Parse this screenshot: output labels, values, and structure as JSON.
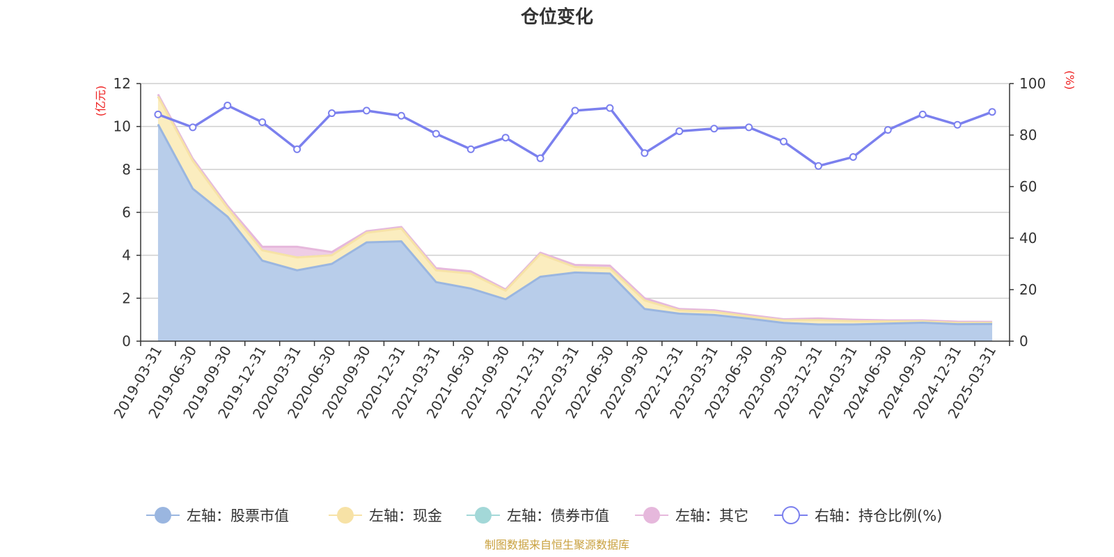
{
  "chart_data": {
    "type": "area",
    "title": "仓位变化",
    "source_note": "制图数据来自恒生聚源数据库",
    "left_axis": {
      "unit": "(亿元)",
      "ylim": [
        0,
        12
      ],
      "ticks": [
        0,
        2,
        4,
        6,
        8,
        10,
        12
      ]
    },
    "right_axis": {
      "unit": "(%)",
      "ylim": [
        0,
        100
      ],
      "ticks": [
        0,
        20,
        40,
        60,
        80,
        100
      ]
    },
    "axis_label_color": "#ee1c1c",
    "x_tick_labels": [
      "2019-03-31",
      "2019-06-30",
      "2019-09-30",
      "2019-12-31",
      "2020-03-31",
      "2020-06-30",
      "2020-09-30",
      "2020-12-31",
      "2021-03-31",
      "2021-06-30",
      "2021-09-30",
      "2021-12-31",
      "2022-03-31",
      "2022-06-30",
      "2022-09-30",
      "2022-12-31",
      "2023-03-31",
      "2023-06-30",
      "2023-09-30",
      "2023-12-31",
      "2024-03-31",
      "2024-06-30",
      "2024-09-30",
      "2024-12-31",
      "2025-03-31"
    ],
    "series": [
      {
        "name": "左轴：股票市值",
        "axis": "left",
        "kind": "stacked-area",
        "color": "#9ab6e0",
        "fill": "#b8cdea",
        "values": [
          10.1,
          7.1,
          5.8,
          3.75,
          3.3,
          3.6,
          4.6,
          4.65,
          2.75,
          2.45,
          1.95,
          3.0,
          3.2,
          3.15,
          1.5,
          1.28,
          1.22,
          1.05,
          0.85,
          0.78,
          0.78,
          0.82,
          0.86,
          0.79,
          0.8
        ]
      },
      {
        "name": "左轴：现金",
        "axis": "left",
        "kind": "stacked-area",
        "color": "#f7e2a6",
        "fill": "#fbedbf",
        "values": [
          1.3,
          1.3,
          0.4,
          0.48,
          0.6,
          0.4,
          0.45,
          0.6,
          0.55,
          0.7,
          0.4,
          1.05,
          0.25,
          0.25,
          0.4,
          0.15,
          0.15,
          0.1,
          0.12,
          0.2,
          0.15,
          0.1,
          0.06,
          0.06,
          0.05
        ]
      },
      {
        "name": "左轴：债券市值",
        "axis": "left",
        "kind": "stacked-area",
        "color": "#a3d8d8",
        "fill": "#bfe6e6",
        "values": [
          0,
          0,
          0,
          0,
          0,
          0,
          0,
          0,
          0,
          0,
          0,
          0,
          0,
          0,
          0,
          0,
          0,
          0,
          0,
          0,
          0,
          0,
          0,
          0,
          0
        ]
      },
      {
        "name": "左轴：其它",
        "axis": "left",
        "kind": "stacked-area",
        "color": "#e6b8dc",
        "fill": "#efcde6",
        "values": [
          0.1,
          0.1,
          0.1,
          0.17,
          0.5,
          0.15,
          0.07,
          0.07,
          0.1,
          0.1,
          0.06,
          0.07,
          0.1,
          0.12,
          0.1,
          0.07,
          0.07,
          0.07,
          0.05,
          0.08,
          0.07,
          0.05,
          0.05,
          0.06,
          0.05
        ]
      },
      {
        "name": "右轴：持仓比例(%)",
        "axis": "right",
        "kind": "line",
        "color": "#7b80ee",
        "values": [
          88,
          83,
          91.5,
          85,
          74.5,
          88.5,
          89.5,
          87.5,
          80.5,
          74.5,
          79,
          71,
          89.5,
          90.5,
          73,
          81.5,
          82.5,
          83,
          77.5,
          68,
          71.5,
          82,
          88,
          84,
          89
        ]
      }
    ]
  }
}
